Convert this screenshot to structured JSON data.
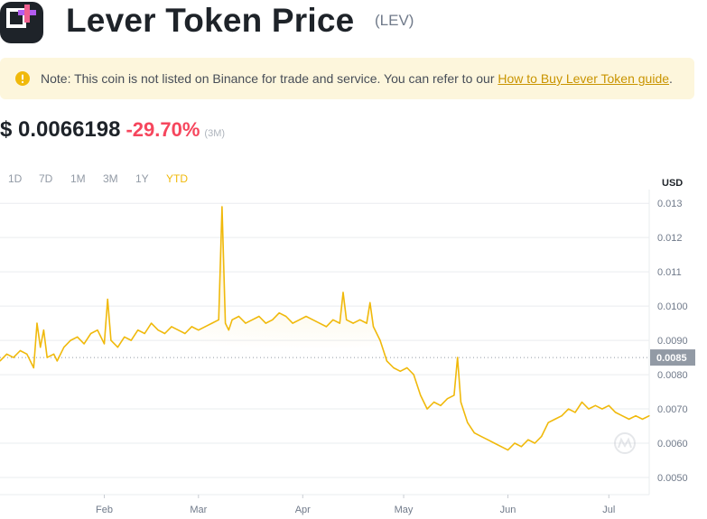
{
  "header": {
    "title": "Lever Token Price",
    "ticker": "(LEV)"
  },
  "notice": {
    "text": "Note: This coin is not listed on Binance for trade and service. You can refer to our ",
    "link_label": "How to Buy Lever Token guide",
    "suffix": "."
  },
  "price": {
    "value": "$ 0.0066198",
    "change": "-29.70%",
    "period": "(3M)"
  },
  "tabs": [
    {
      "label": "1D",
      "active": false
    },
    {
      "label": "7D",
      "active": false
    },
    {
      "label": "1M",
      "active": false
    },
    {
      "label": "3M",
      "active": false
    },
    {
      "label": "1Y",
      "active": false
    },
    {
      "label": "YTD",
      "active": true
    }
  ],
  "colors": {
    "line": "#f0b90b",
    "negative": "#f6465d",
    "accent": "#f0b90b",
    "marker": "#929aa5"
  },
  "chart_data": {
    "type": "line",
    "currency_label": "USD",
    "ylim": [
      0.0045,
      0.0134
    ],
    "y_ticks": [
      "0.013",
      "0.012",
      "0.011",
      "0.0100",
      "0.0090",
      "0.0080",
      "0.0070",
      "0.0060",
      "0.0050"
    ],
    "y_tick_values": [
      0.013,
      0.012,
      0.011,
      0.01,
      0.009,
      0.008,
      0.007,
      0.006,
      0.005
    ],
    "x_ticks": [
      "Feb",
      "Mar",
      "Apr",
      "May",
      "Jun",
      "Jul"
    ],
    "x_tick_days": [
      32,
      60,
      91,
      121,
      152,
      182
    ],
    "xlim": [
      1,
      194
    ],
    "reference_value": 0.0085,
    "reference_label": "0.0085",
    "grid": true,
    "series": [
      {
        "x": [
          1,
          3,
          5,
          7,
          9,
          11,
          12,
          13,
          14,
          15,
          17,
          18,
          20,
          22,
          24,
          26,
          28,
          30,
          32,
          33,
          34,
          36,
          38,
          40,
          42,
          44,
          46,
          48,
          50,
          52,
          54,
          56,
          58,
          60,
          62,
          64,
          66,
          67,
          68,
          69,
          70,
          72,
          74,
          76,
          78,
          80,
          82,
          84,
          86,
          88,
          90,
          92,
          94,
          96,
          98,
          100,
          102,
          103,
          104,
          106,
          108,
          110,
          111,
          112,
          114,
          116,
          118,
          120,
          122,
          124,
          126,
          128,
          130,
          132,
          134,
          136,
          137,
          138,
          140,
          142,
          144,
          146,
          148,
          150,
          152,
          154,
          156,
          158,
          160,
          162,
          164,
          166,
          168,
          170,
          172,
          174,
          176,
          178,
          180,
          182,
          184,
          186,
          188,
          190,
          192,
          194
        ],
        "values": [
          0.0084,
          0.0086,
          0.0085,
          0.0087,
          0.0086,
          0.0082,
          0.0095,
          0.0088,
          0.0093,
          0.0085,
          0.0086,
          0.0084,
          0.0088,
          0.009,
          0.0091,
          0.0089,
          0.0092,
          0.0093,
          0.0089,
          0.0102,
          0.009,
          0.0088,
          0.0091,
          0.009,
          0.0093,
          0.0092,
          0.0095,
          0.0093,
          0.0092,
          0.0094,
          0.0093,
          0.0092,
          0.0094,
          0.0093,
          0.0094,
          0.0095,
          0.0096,
          0.0129,
          0.0095,
          0.0093,
          0.0096,
          0.0097,
          0.0095,
          0.0096,
          0.0097,
          0.0095,
          0.0096,
          0.0098,
          0.0097,
          0.0095,
          0.0096,
          0.0097,
          0.0096,
          0.0095,
          0.0094,
          0.0096,
          0.0095,
          0.0104,
          0.0096,
          0.0095,
          0.0096,
          0.0095,
          0.0101,
          0.0094,
          0.009,
          0.0084,
          0.0082,
          0.0081,
          0.0082,
          0.008,
          0.0074,
          0.007,
          0.0072,
          0.0071,
          0.0073,
          0.0074,
          0.0085,
          0.0072,
          0.0066,
          0.0063,
          0.0062,
          0.0061,
          0.006,
          0.0059,
          0.0058,
          0.006,
          0.0059,
          0.0061,
          0.006,
          0.0062,
          0.0066,
          0.0067,
          0.0068,
          0.007,
          0.0069,
          0.0072,
          0.007,
          0.0071,
          0.007,
          0.0071,
          0.0069,
          0.0068,
          0.0067,
          0.0068,
          0.0067,
          0.0068
        ]
      }
    ]
  }
}
